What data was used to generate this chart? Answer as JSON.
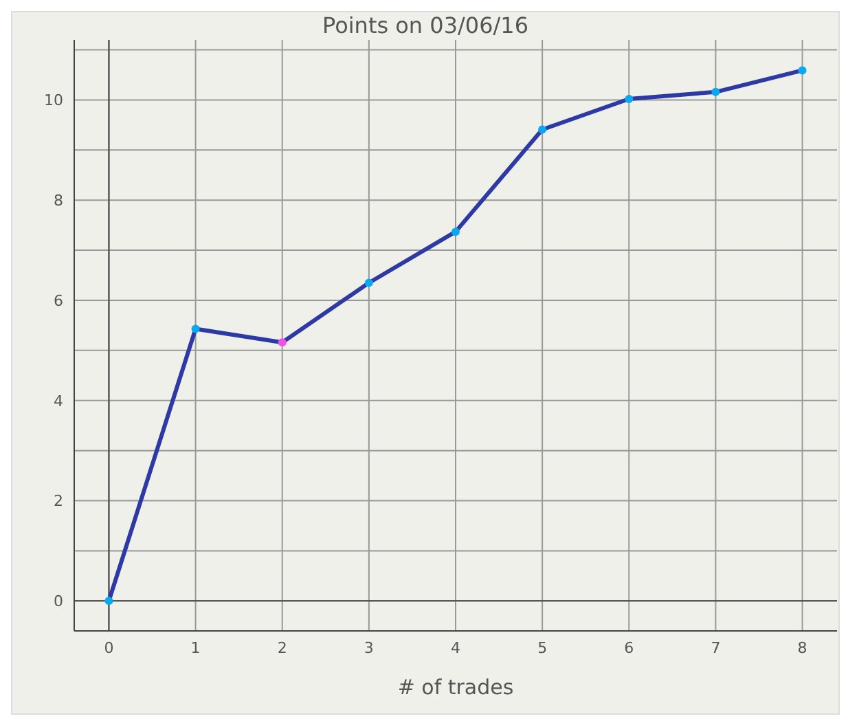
{
  "chart_data": {
    "type": "line",
    "title": "Points on 03/06/16",
    "xlabel": "# of trades",
    "x": [
      0,
      1,
      2,
      3,
      4,
      5,
      6,
      7,
      8
    ],
    "series": [
      {
        "color": "#2e3aa3",
        "colors": [
          "#0aa8f0",
          "#0aa8f0",
          "#f050e8",
          "#0aa8f0",
          "#0aa8f0",
          "#0aa8f0",
          "#0aa8f0",
          "#0aa8f0",
          "#0aa8f0"
        ],
        "values": [
          0,
          5.43,
          5.16,
          6.35,
          7.37,
          9.41,
          10.02,
          10.16,
          10.59
        ]
      }
    ],
    "xlim": [
      -0.4,
      8.4
    ],
    "xticks": [
      0,
      1,
      2,
      3,
      4,
      5,
      6,
      7,
      8
    ],
    "ylim": [
      -0.6,
      11.2
    ],
    "yticks": [
      0,
      {
        "value": 1,
        "label": null
      },
      2,
      {
        "value": 3,
        "label": null
      },
      4,
      {
        "value": 5,
        "label": null
      },
      6,
      {
        "value": 7,
        "label": null
      },
      8,
      {
        "value": 9,
        "label": null
      },
      10,
      {
        "value": 11,
        "label": null
      }
    ],
    "grid": true,
    "marker": "circle",
    "line_style": "solid"
  }
}
